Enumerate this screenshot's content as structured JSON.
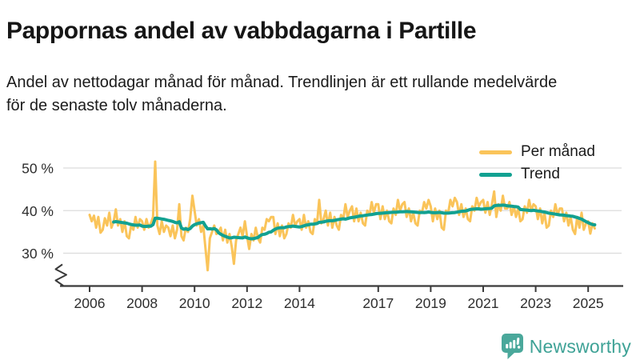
{
  "header": {
    "title": "Pappornas andel av vabbdagarna i Partille",
    "subtitle": "Andel av nettodagar månad för månad. Trendlinjen är ett rullande medelvärde för de senaste tolv månaderna."
  },
  "legend": {
    "items": [
      {
        "label": "Per månad",
        "color": "#fac45a"
      },
      {
        "label": "Trend",
        "color": "#12a191"
      }
    ]
  },
  "footer": {
    "brand": "Newsworthy",
    "brand_color": "#3ea296",
    "logo_color": "#4aa89b"
  },
  "chart_data": {
    "type": "line",
    "title": "Pappornas andel av vabbdagarna i Partille",
    "subtitle": "Andel av nettodagar månad för månad. Trendlinjen är ett rullande medelvärde för de senaste tolv månaderna.",
    "x_unit": "month",
    "x_start": "2006-01",
    "x_end": "2025-04",
    "grid": "horizontal",
    "legend_position": "top-right",
    "y_axis_break": true,
    "ylim": [
      24,
      53
    ],
    "y_tick_color": "#2e2e2e",
    "grid_color": "#dcdcdc",
    "axis_color": "#3a3a3a",
    "x_ticks": [
      {
        "value": 2006,
        "label": "2006"
      },
      {
        "value": 2008,
        "label": "2008"
      },
      {
        "value": 2010,
        "label": "2010"
      },
      {
        "value": 2012,
        "label": "2012"
      },
      {
        "value": 2014,
        "label": "2014"
      },
      {
        "value": 2017,
        "label": "2017"
      },
      {
        "value": 2019,
        "label": "2019"
      },
      {
        "value": 2021,
        "label": "2021"
      },
      {
        "value": 2023,
        "label": "2023"
      },
      {
        "value": 2025,
        "label": "2025"
      }
    ],
    "y_ticks": [
      {
        "value": 30,
        "label": "30 %"
      },
      {
        "value": 40,
        "label": "40 %"
      },
      {
        "value": 50,
        "label": "50 %"
      }
    ],
    "series": [
      {
        "name": "Per månad",
        "color": "#fac45a",
        "unit": "%",
        "values": [
          39.0,
          37.5,
          38.8,
          36.0,
          38.5,
          34.8,
          35.5,
          38.2,
          36.5,
          39.5,
          36.0,
          37.5,
          40.3,
          36.5,
          38.0,
          35.0,
          37.5,
          34.0,
          33.5,
          36.5,
          35.5,
          38.5,
          36.0,
          38.0,
          37.5,
          35.5,
          38.0,
          36.0,
          37.0,
          38.5,
          51.5,
          36.5,
          34.5,
          37.5,
          35.0,
          36.5,
          36.0,
          34.0,
          36.5,
          33.5,
          35.5,
          41.5,
          34.0,
          33.0,
          36.0,
          35.0,
          38.0,
          43.5,
          40.0,
          36.5,
          38.0,
          35.0,
          36.5,
          31.0,
          26.0,
          33.5,
          35.0,
          36.5,
          34.5,
          35.0,
          36.0,
          33.0,
          35.5,
          32.5,
          34.5,
          31.5,
          27.5,
          33.0,
          34.5,
          36.0,
          34.0,
          37.5,
          34.0,
          31.0,
          34.5,
          33.0,
          36.0,
          33.5,
          32.5,
          36.0,
          35.5,
          38.0,
          37.5,
          38.5,
          38.5,
          34.5,
          37.0,
          34.0,
          36.5,
          33.5,
          34.5,
          37.0,
          36.0,
          39.0,
          36.5,
          37.5,
          38.0,
          35.5,
          39.0,
          36.0,
          37.5,
          35.0,
          34.5,
          38.0,
          37.0,
          42.5,
          37.0,
          38.0,
          40.0,
          36.5,
          39.5,
          36.0,
          38.5,
          36.5,
          35.5,
          39.0,
          38.0,
          41.5,
          38.5,
          40.0,
          41.0,
          37.5,
          40.5,
          37.5,
          39.5,
          37.0,
          36.5,
          40.0,
          39.0,
          42.0,
          39.5,
          41.5,
          41.5,
          38.0,
          41.0,
          38.0,
          40.0,
          37.5,
          37.0,
          40.5,
          39.0,
          42.5,
          40.0,
          41.5,
          42.0,
          38.5,
          40.5,
          37.5,
          39.5,
          37.0,
          36.5,
          40.0,
          39.5,
          42.0,
          40.5,
          42.5,
          41.0,
          37.5,
          40.5,
          38.0,
          40.0,
          36.0,
          35.5,
          40.0,
          39.5,
          42.5,
          41.0,
          43.0,
          42.0,
          39.0,
          41.5,
          38.5,
          40.5,
          38.0,
          37.5,
          41.0,
          40.0,
          43.0,
          41.0,
          42.0,
          42.5,
          39.5,
          42.0,
          39.0,
          41.5,
          44.5,
          38.5,
          41.5,
          40.0,
          43.5,
          40.5,
          40.5,
          42.0,
          39.0,
          41.0,
          38.5,
          40.5,
          37.5,
          38.0,
          41.0,
          39.5,
          42.5,
          40.0,
          41.5,
          41.0,
          38.0,
          40.5,
          37.0,
          39.5,
          36.0,
          36.5,
          40.0,
          38.5,
          41.5,
          39.0,
          40.5,
          40.5,
          37.5,
          39.5,
          36.5,
          38.5,
          35.5,
          34.5,
          38.5,
          36.0,
          39.5,
          35.5,
          37.0,
          37.5,
          34.6,
          37.0,
          35.8
        ]
      },
      {
        "name": "Trend",
        "color": "#12a191",
        "unit": "%",
        "derived": "rolling mean of the last 12 months of series 'Per månad'"
      }
    ]
  }
}
